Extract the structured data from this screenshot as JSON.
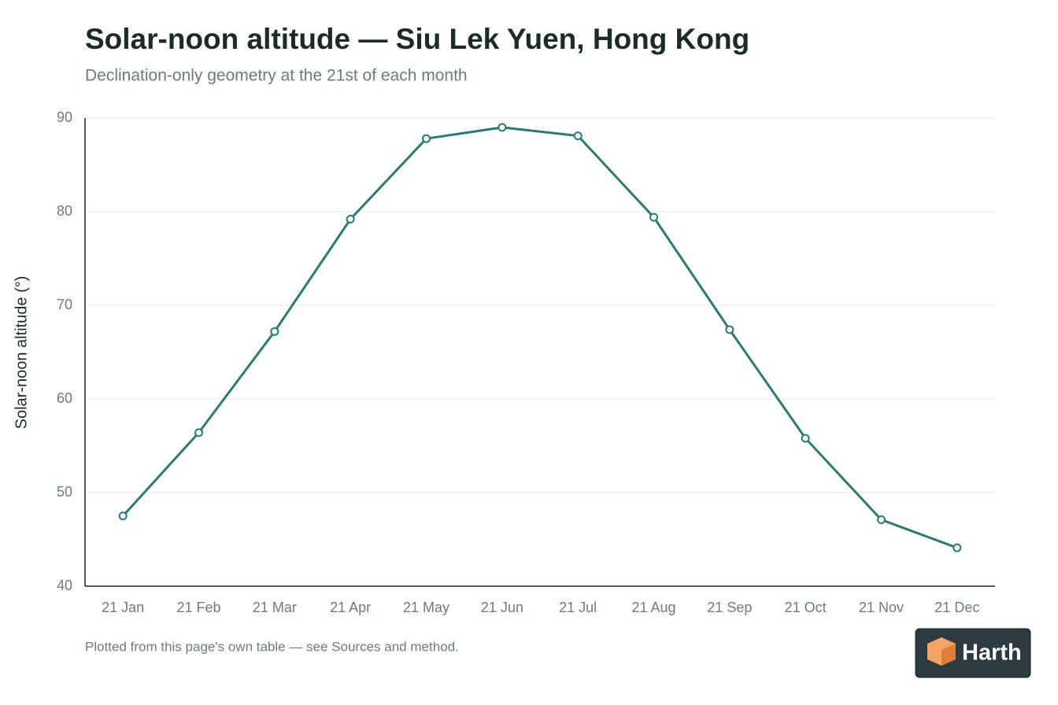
{
  "chart_data": {
    "type": "line",
    "title": "Solar-noon altitude — Siu Lek Yuen, Hong Kong",
    "subtitle": "Declination-only geometry at the 21st of each month",
    "y_label": "Solar-noon altitude (°)",
    "note": "Plotted from this page's own table — see Sources and method.",
    "categories": [
      "21 Jan",
      "21 Feb",
      "21 Mar",
      "21 Apr",
      "21 May",
      "21 Jun",
      "21 Jul",
      "21 Aug",
      "21 Sep",
      "21 Oct",
      "21 Nov",
      "21 Dec"
    ],
    "series": [
      {
        "name": "Solar-noon altitude",
        "color": "#2e7a70",
        "values": [
          47.5,
          56.4,
          67.2,
          79.2,
          87.8,
          89.0,
          88.1,
          79.4,
          67.4,
          55.8,
          47.1,
          44.1
        ]
      }
    ],
    "ylim": [
      40,
      90
    ],
    "yticks": [
      40,
      50,
      60,
      70,
      80,
      90
    ],
    "grid": true
  },
  "brand": "Harth"
}
